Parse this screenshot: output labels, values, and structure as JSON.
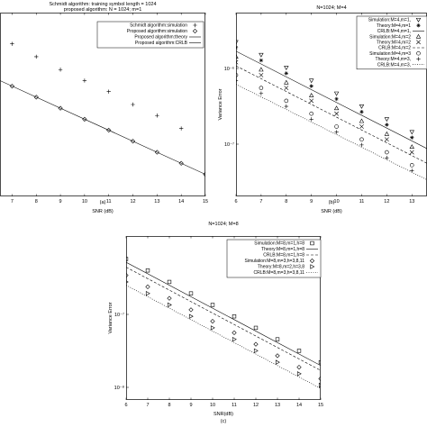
{
  "chart_data": [
    {
      "type": "line",
      "panel_label": "(a)",
      "title_lines": [
        "Schmidt algorithm: training symbol length = 1024",
        "proposed algorithm: N = 1024; m=1"
      ],
      "xlabel": "SNR (dB)",
      "ylabel": "",
      "x_ticks": [
        "7",
        "8",
        "9",
        "10",
        "11",
        "12",
        "13",
        "14",
        "15"
      ],
      "xlim": [
        6.5,
        15
      ],
      "ylim": [
        0,
        10
      ],
      "y_scale": "log",
      "legend": [
        "Schmidt algorithm:simulation",
        "Proposed algorithm:simulation",
        "Proposed algorithm:theory",
        "Proposed algorithm:CRLB"
      ],
      "legend_position": "top-right",
      "series": [
        {
          "name": "Schmidt algorithm:simulation",
          "marker": "+",
          "x": [
            7,
            8,
            9,
            10,
            11,
            12,
            13,
            14
          ],
          "y": [
            8.3,
            7.6,
            6.9,
            6.3,
            5.7,
            5.0,
            4.4,
            3.7
          ]
        },
        {
          "name": "Proposed algorithm:simulation",
          "marker": "diamond",
          "x": [
            7,
            8,
            9,
            10,
            11,
            12,
            13,
            14,
            15
          ],
          "y": [
            6.0,
            5.4,
            4.8,
            4.2,
            3.6,
            3.0,
            2.4,
            1.8,
            1.2
          ]
        },
        {
          "name": "Proposed algorithm:CRLB",
          "marker": "none",
          "dash": "solid",
          "x": [
            6.5,
            15
          ],
          "y": [
            6.3,
            1.2
          ]
        }
      ]
    },
    {
      "type": "line",
      "panel_label": "(b)",
      "title_lines": [
        "N=1024; M=4"
      ],
      "xlabel": "SNR (dB)",
      "ylabel": "Variance Error",
      "x_ticks": [
        "6",
        "7",
        "8",
        "9",
        "10",
        "11",
        "12",
        "13"
      ],
      "y_tick_labels": [
        "10⁻⁶",
        "10⁻⁷"
      ],
      "xlim": [
        6,
        13.6
      ],
      "ylim": [
        0,
        10
      ],
      "y_scale": "log",
      "legend": [
        "Simulation:M=4,m=1,",
        "Theory:M=4,m=1",
        "CRLB:M=4,m=1,",
        "Simulation:M=4,m=2",
        "Theory:M=4,m=2",
        "CRLB:M=4,m=2",
        "Simulation:M=4,m=3",
        "Theory:M=4,m=3,",
        "CRLB:M=4,m=3,"
      ],
      "legend_position": "top-right",
      "series": [
        {
          "name": "Simulation:M=4,m=1,",
          "marker": "triangle-down",
          "x": [
            6,
            7,
            8,
            9,
            10,
            11,
            12,
            13
          ],
          "y": [
            8.4,
            7.7,
            7.0,
            6.3,
            5.6,
            4.9,
            4.2,
            3.5
          ]
        },
        {
          "name": "Theory:M=4,m=1",
          "marker": "star",
          "x": [
            6,
            7,
            8,
            9,
            10,
            11,
            12,
            13
          ],
          "y": [
            8.1,
            7.4,
            6.7,
            6.0,
            5.3,
            4.6,
            3.9,
            3.2
          ]
        },
        {
          "name": "CRLB:M=4,m=1,",
          "marker": "none",
          "dash": "solid",
          "x": [
            6,
            13.6
          ],
          "y": [
            7.9,
            2.6
          ]
        },
        {
          "name": "Simulation:M=4,m=2",
          "marker": "triangle-up",
          "x": [
            6,
            7,
            8,
            9,
            10,
            11,
            12,
            13
          ],
          "y": [
            7.6,
            6.9,
            6.2,
            5.5,
            4.8,
            4.1,
            3.4,
            2.7
          ]
        },
        {
          "name": "Theory:M=4,m=2",
          "marker": "x",
          "x": [
            6,
            7,
            8,
            9,
            10,
            11,
            12,
            13
          ],
          "y": [
            7.3,
            6.6,
            5.9,
            5.2,
            4.5,
            3.8,
            3.1,
            2.4
          ]
        },
        {
          "name": "CRLB:M=4,m=2",
          "marker": "none",
          "dash": "dash",
          "x": [
            6,
            13.6
          ],
          "y": [
            7.1,
            1.8
          ]
        },
        {
          "name": "Simulation:M=4,m=3",
          "marker": "circle",
          "x": [
            6,
            7,
            8,
            9,
            10,
            11,
            12,
            13
          ],
          "y": [
            6.6,
            5.9,
            5.2,
            4.5,
            3.8,
            3.1,
            2.4,
            1.7
          ]
        },
        {
          "name": "Theory:M=4,m=3,",
          "marker": "plus",
          "x": [
            6,
            7,
            8,
            9,
            10,
            11,
            12,
            13
          ],
          "y": [
            6.3,
            5.6,
            4.9,
            4.2,
            3.5,
            2.8,
            2.1,
            1.4
          ]
        },
        {
          "name": "CRLB:M=4,m=3,",
          "marker": "none",
          "dash": "dot",
          "x": [
            6,
            13.6
          ],
          "y": [
            6.1,
            0.9
          ]
        }
      ]
    },
    {
      "type": "line",
      "panel_label": "(c)",
      "title_lines": [
        "N=1024; M=8"
      ],
      "xlabel": "SNR(dB)",
      "ylabel": "Variance Error",
      "x_ticks": [
        "6",
        "7",
        "8",
        "9",
        "10",
        "11",
        "12",
        "13",
        "14",
        "15"
      ],
      "y_tick_labels": [
        "10⁻⁷",
        "10⁻⁸"
      ],
      "xlim": [
        6,
        15
      ],
      "ylim": [
        0,
        10
      ],
      "y_scale": "log",
      "legend": [
        "Simulation:M=8,m=1,h=8",
        "Theory:M=8,m=1,h=8",
        "CRLB:M=8,m=1,h=8",
        "Simulation:M=8,m=3,h=3,8,11",
        "Theory:M=8,m=2,h=3,8",
        "CRLB:M=8,m=3,h=3,8,11"
      ],
      "legend_position": "top-right",
      "series": [
        {
          "name": "Simulation:M=8,m=1,h=8",
          "marker": "square",
          "x": [
            6,
            7,
            8,
            9,
            10,
            11,
            12,
            13,
            14,
            15
          ],
          "y": [
            8.6,
            7.9,
            7.2,
            6.5,
            5.8,
            5.1,
            4.4,
            3.7,
            3.0,
            2.3
          ]
        },
        {
          "name": "Theory:M=8,m=1,h=8",
          "marker": "none",
          "dash": "solid",
          "x": [
            6,
            15
          ],
          "y": [
            8.4,
            2.1
          ]
        },
        {
          "name": "CRLB:M=8,m=1,h=8",
          "marker": "none",
          "dash": "dash",
          "x": [
            6,
            15
          ],
          "y": [
            8.1,
            1.8
          ]
        },
        {
          "name": "Simulation:M=8,m=3,h=3,8,11",
          "marker": "diamond",
          "x": [
            6,
            7,
            8,
            9,
            10,
            11,
            12,
            13,
            14,
            15
          ],
          "y": [
            7.6,
            6.9,
            6.2,
            5.5,
            4.8,
            4.1,
            3.4,
            2.7,
            2.0,
            1.3
          ]
        },
        {
          "name": "Theory:M=8,m=2,h=3,8",
          "marker": "triangle-right",
          "x": [
            6,
            7,
            8,
            9,
            10,
            11,
            12,
            13,
            14,
            15
          ],
          "y": [
            7.2,
            6.5,
            5.8,
            5.1,
            4.4,
            3.7,
            3.0,
            2.3,
            1.6,
            0.9
          ]
        },
        {
          "name": "CRLB:M=8,m=3,h=3,8,11",
          "marker": "none",
          "dash": "dot",
          "x": [
            6,
            15
          ],
          "y": [
            7.0,
            0.7
          ]
        }
      ]
    }
  ]
}
